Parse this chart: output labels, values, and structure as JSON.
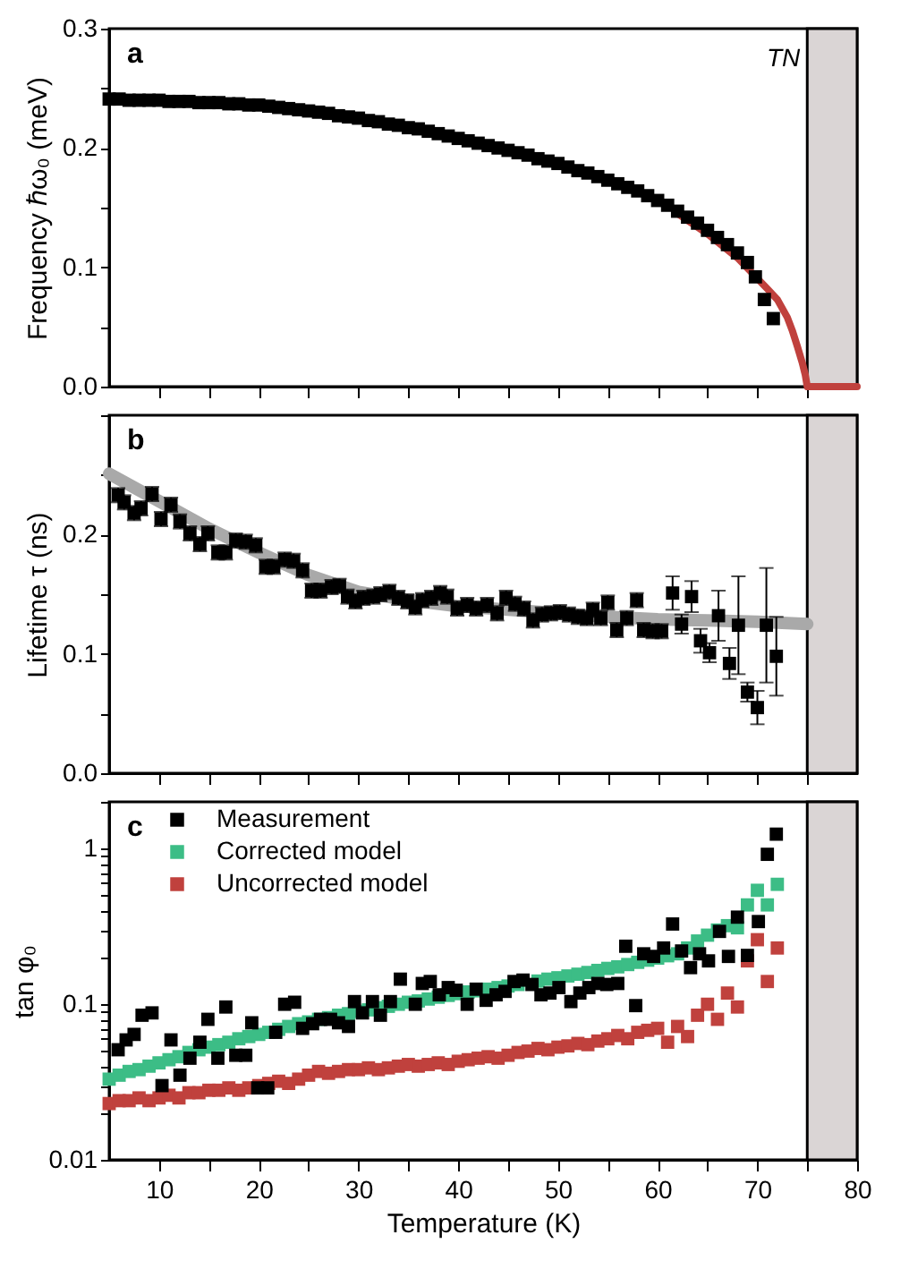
{
  "chart_data": [
    {
      "type": "scatter",
      "ylabel": "Frequency ℏω₀ (meV)",
      "tick_labels": "y",
      "annotations": [
        "a"
      ],
      "xlim": [
        5,
        80
      ],
      "xticks": [
        {
          "value": 10,
          "label": null
        },
        {
          "value": 15,
          "label": null
        },
        {
          "value": 20,
          "label": null
        },
        {
          "value": 25,
          "label": null
        },
        {
          "value": 30,
          "label": null
        },
        {
          "value": 35,
          "label": null
        },
        {
          "value": 40,
          "label": null
        },
        {
          "value": 45,
          "label": null
        },
        {
          "value": 50,
          "label": null
        },
        {
          "value": 55,
          "label": null
        },
        {
          "value": 60,
          "label": null
        },
        {
          "value": 65,
          "label": null
        },
        {
          "value": 70,
          "label": null
        },
        {
          "value": 75,
          "label": null
        }
      ],
      "ylim": [
        0,
        0.3
      ],
      "yticks": [
        {
          "value": 0,
          "label": "0.0"
        },
        {
          "value": 0.05,
          "label": null
        },
        0.1,
        {
          "value": 0.15,
          "label": null
        },
        0.2,
        {
          "value": 0.25,
          "label": null
        },
        0.3
      ],
      "bands": [
        {
          "axis": "x",
          "from": 75,
          "to": 80,
          "label": "TN",
          "color": "#dad5d5"
        }
      ],
      "series": [
        {
          "type": "line",
          "color": "#c0413d",
          "x": [
            62,
            65,
            68,
            71,
            72,
            73,
            73.5,
            74,
            74.5,
            74.8,
            75,
            80
          ],
          "values": [
            0.145,
            0.128,
            0.108,
            0.082,
            0.073,
            0.058,
            0.047,
            0.034,
            0.02,
            0.01,
            0,
            0
          ]
        },
        {
          "marker": "square",
          "color": "#000000",
          "x": [
            5,
            6,
            7,
            8,
            9,
            10,
            11,
            12,
            13,
            14,
            15,
            16,
            17,
            18,
            19,
            20,
            21,
            22,
            23,
            24,
            25,
            26,
            27,
            28,
            29,
            30,
            31,
            32,
            33,
            34,
            35,
            36,
            37,
            38,
            39,
            40,
            41,
            42,
            43,
            44,
            45,
            46,
            47,
            48,
            49,
            50,
            51,
            52,
            53,
            54,
            55,
            56,
            57,
            58,
            59,
            60,
            61,
            62,
            63,
            64,
            65,
            66,
            67,
            68,
            69,
            69.8,
            70.7,
            71.6
          ],
          "values": [
            0.241,
            0.241,
            0.24,
            0.24,
            0.24,
            0.24,
            0.239,
            0.239,
            0.239,
            0.238,
            0.238,
            0.238,
            0.237,
            0.237,
            0.236,
            0.236,
            0.235,
            0.234,
            0.233,
            0.232,
            0.231,
            0.23,
            0.229,
            0.227,
            0.226,
            0.225,
            0.223,
            0.222,
            0.22,
            0.219,
            0.217,
            0.216,
            0.214,
            0.212,
            0.21,
            0.208,
            0.206,
            0.204,
            0.202,
            0.2,
            0.198,
            0.196,
            0.194,
            0.191,
            0.189,
            0.187,
            0.184,
            0.181,
            0.179,
            0.176,
            0.173,
            0.17,
            0.167,
            0.164,
            0.16,
            0.156,
            0.152,
            0.147,
            0.142,
            0.137,
            0.131,
            0.125,
            0.119,
            0.112,
            0.104,
            0.092,
            0.073,
            0.057
          ]
        }
      ]
    },
    {
      "type": "scatter",
      "ylabel": "Lifetime τ (ns)",
      "tick_labels": "y",
      "annotations": [
        "b"
      ],
      "xlim": [
        5,
        80
      ],
      "xticks": [
        {
          "value": 10,
          "label": null
        },
        {
          "value": 15,
          "label": null
        },
        {
          "value": 20,
          "label": null
        },
        {
          "value": 25,
          "label": null
        },
        {
          "value": 30,
          "label": null
        },
        {
          "value": 35,
          "label": null
        },
        {
          "value": 40,
          "label": null
        },
        {
          "value": 45,
          "label": null
        },
        {
          "value": 50,
          "label": null
        },
        {
          "value": 55,
          "label": null
        },
        {
          "value": 60,
          "label": null
        },
        {
          "value": 65,
          "label": null
        },
        {
          "value": 70,
          "label": null
        },
        {
          "value": 75,
          "label": null
        }
      ],
      "ylim": [
        0,
        0.3
      ],
      "yticks": [
        {
          "value": 0,
          "label": "0.0"
        },
        {
          "value": 0.05,
          "label": null
        },
        0.1,
        {
          "value": 0.15,
          "label": null
        },
        0.2,
        {
          "value": 0.25,
          "label": null
        },
        {
          "value": 0.3,
          "label": null
        }
      ],
      "bands": [
        {
          "axis": "x",
          "from": 75,
          "to": 80,
          "color": "#dad5d5"
        }
      ],
      "series": [
        {
          "type": "line",
          "color": "#a9a9a9",
          "x": [
            5,
            10,
            15,
            20,
            25,
            30,
            35,
            40,
            45,
            50,
            55,
            60,
            65,
            70,
            75
          ],
          "values": [
            0.251,
            0.228,
            0.205,
            0.185,
            0.166,
            0.152,
            0.145,
            0.14,
            0.137,
            0.134,
            0.131,
            0.129,
            0.128,
            0.127,
            0.125
          ]
        },
        {
          "marker": "square",
          "color": "#000000",
          "x": [
            5.9,
            6.5,
            7.5,
            8.2,
            9.3,
            10.2,
            11.2,
            12.1,
            13.1,
            14.1,
            14.9,
            15.9,
            16.7,
            17.7,
            18.7,
            19.7,
            20.7,
            21.5,
            22.6,
            23.5,
            24.4,
            25.3,
            26.2,
            27.3,
            28.1,
            28.9,
            29.7,
            30.5,
            31.5,
            32.2,
            33.1,
            34.0,
            34.9,
            35.7,
            36.4,
            37.3,
            38.2,
            38.9,
            39.9,
            40.9,
            41.8,
            42.9,
            43.9,
            44.8,
            45.7,
            46.6,
            47.5,
            48.4,
            49.3,
            50.2,
            51.1,
            52.0,
            52.9,
            53.5,
            54.3,
            55.0,
            55.9,
            56.9,
            57.9,
            58.6,
            59.5,
            60.4,
            61.5,
            62.4,
            63.4,
            64.3,
            65.2,
            66.1,
            67.2,
            68.1,
            69.0,
            70.0,
            70.9,
            71.9
          ],
          "values": [
            0.233,
            0.227,
            0.218,
            0.222,
            0.234,
            0.213,
            0.225,
            0.211,
            0.201,
            0.192,
            0.201,
            0.185,
            0.185,
            0.195,
            0.194,
            0.191,
            0.173,
            0.173,
            0.179,
            0.178,
            0.17,
            0.153,
            0.153,
            0.156,
            0.157,
            0.148,
            0.144,
            0.147,
            0.148,
            0.15,
            0.152,
            0.147,
            0.144,
            0.139,
            0.145,
            0.147,
            0.151,
            0.148,
            0.138,
            0.141,
            0.138,
            0.141,
            0.134,
            0.147,
            0.142,
            0.138,
            0.128,
            0.133,
            0.134,
            0.135,
            0.133,
            0.131,
            0.13,
            0.137,
            0.13,
            0.143,
            0.12,
            0.13,
            0.145,
            0.12,
            0.119,
            0.119,
            0.151,
            0.125,
            0.148,
            0.111,
            0.101,
            0.132,
            0.092,
            0.124,
            0.068,
            0.055,
            0.124,
            0.098
          ],
          "errors": [
            0.006,
            0.006,
            0.006,
            0.006,
            0.006,
            0.006,
            0.006,
            0.006,
            0.006,
            0.006,
            0.006,
            0.006,
            0.006,
            0.006,
            0.006,
            0.006,
            0.006,
            0.006,
            0.006,
            0.006,
            0.006,
            0.006,
            0.006,
            0.006,
            0.006,
            0.006,
            0.006,
            0.006,
            0.006,
            0.006,
            0.006,
            0.006,
            0.006,
            0.006,
            0.006,
            0.006,
            0.006,
            0.006,
            0.006,
            0.006,
            0.006,
            0.006,
            0.006,
            0.006,
            0.006,
            0.006,
            0.006,
            0.006,
            0.006,
            0.006,
            0.006,
            0.006,
            0.006,
            0.006,
            0.006,
            0.006,
            0.006,
            0.006,
            0.006,
            0.006,
            0.006,
            0.006,
            0.014,
            0.008,
            0.013,
            0.01,
            0.008,
            0.021,
            0.013,
            0.041,
            0.008,
            0.014,
            0.048,
            0.033
          ]
        }
      ]
    },
    {
      "type": "scatter",
      "xlabel": "Temperature (K)",
      "ylabel": "tan φ₀",
      "marker": "square",
      "log": "y",
      "legend": "top left",
      "annotations": [
        "c"
      ],
      "xlim": [
        5,
        80
      ],
      "xticks": [
        10,
        {
          "value": 15,
          "label": null
        },
        20,
        {
          "value": 25,
          "label": null
        },
        30,
        {
          "value": 35,
          "label": null
        },
        40,
        {
          "value": 45,
          "label": null
        },
        50,
        {
          "value": 55,
          "label": null
        },
        60,
        {
          "value": 65,
          "label": null
        },
        70,
        {
          "value": 75,
          "label": null
        },
        80
      ],
      "ylim": [
        0.01,
        2
      ],
      "yticks": [
        0.01,
        {
          "value": 0.02,
          "label": null
        },
        {
          "value": 0.03,
          "label": null
        },
        {
          "value": 0.04,
          "label": null
        },
        {
          "value": 0.05,
          "label": null
        },
        {
          "value": 0.06,
          "label": null
        },
        {
          "value": 0.07,
          "label": null
        },
        {
          "value": 0.08,
          "label": null
        },
        {
          "value": 0.09,
          "label": null
        },
        0.1,
        {
          "value": 0.2,
          "label": null
        },
        {
          "value": 0.3,
          "label": null
        },
        {
          "value": 0.4,
          "label": null
        },
        {
          "value": 0.5,
          "label": null
        },
        {
          "value": 0.6,
          "label": null
        },
        {
          "value": 0.7,
          "label": null
        },
        {
          "value": 0.8,
          "label": null
        },
        {
          "value": 0.9,
          "label": null
        },
        1,
        {
          "value": 2,
          "label": null
        }
      ],
      "bands": [
        {
          "axis": "x",
          "from": 75,
          "to": 80,
          "color": "#dad5d5"
        }
      ],
      "series": [
        {
          "name": "Measurement",
          "color": "#000000",
          "x": [
            5.9,
            6.7,
            7.5,
            8.3,
            9.3,
            10.3,
            11.2,
            12.1,
            13.1,
            14.1,
            14.9,
            15.9,
            16.7,
            17.7,
            18.7,
            19.3,
            19.9,
            20.9,
            21.7,
            22.6,
            23.6,
            24.4,
            25.4,
            26.2,
            27.2,
            28.0,
            29.0,
            29.6,
            30.4,
            31.4,
            32.2,
            33.2,
            34.2,
            35.7,
            36.4,
            37.2,
            38.1,
            39.0,
            39.8,
            40.9,
            41.8,
            42.8,
            43.8,
            44.7,
            45.6,
            46.5,
            47.4,
            48.3,
            49.2,
            50.1,
            51.3,
            52.2,
            53.1,
            54.0,
            54.9,
            56.0,
            56.8,
            57.8,
            58.6,
            59.6,
            60.6,
            61.5,
            62.4,
            63.3,
            64.2,
            65.1,
            66.2,
            67.1,
            68.0,
            69.0,
            70.1,
            71.0,
            71.9
          ],
          "values": [
            0.051,
            0.059,
            0.064,
            0.085,
            0.088,
            0.03,
            0.059,
            0.035,
            0.045,
            0.057,
            0.08,
            0.045,
            0.096,
            0.047,
            0.047,
            0.076,
            0.029,
            0.029,
            0.066,
            0.1,
            0.103,
            0.07,
            0.075,
            0.08,
            0.08,
            0.076,
            0.072,
            0.104,
            0.088,
            0.104,
            0.085,
            0.104,
            0.145,
            0.1,
            0.136,
            0.14,
            0.115,
            0.128,
            0.123,
            0.1,
            0.125,
            0.106,
            0.115,
            0.121,
            0.14,
            0.143,
            0.134,
            0.115,
            0.118,
            0.128,
            0.104,
            0.118,
            0.128,
            0.136,
            0.134,
            0.136,
            0.236,
            0.098,
            0.211,
            0.203,
            0.23,
            0.328,
            0.22,
            0.172,
            0.211,
            0.19,
            0.294,
            0.203,
            0.363,
            0.206,
            0.34,
            0.92,
            1.24
          ]
        },
        {
          "name": "Corrected model",
          "color": "#3cbd86",
          "x": [
            5,
            6,
            7,
            8,
            9,
            10,
            11,
            12,
            13,
            14,
            15,
            16,
            17,
            18,
            19,
            20,
            21,
            22,
            23,
            24,
            25,
            26,
            27,
            28,
            29,
            30,
            31,
            32,
            33,
            34,
            35,
            36,
            37,
            38,
            39,
            40,
            41,
            42,
            43,
            44,
            45,
            46,
            47,
            48,
            49,
            50,
            51,
            52,
            53,
            54,
            55,
            56,
            57,
            58,
            59,
            60,
            61,
            62,
            63,
            64,
            65,
            66,
            67,
            68,
            69,
            70,
            71,
            72
          ],
          "values": [
            0.033,
            0.035,
            0.037,
            0.038,
            0.04,
            0.042,
            0.044,
            0.046,
            0.049,
            0.051,
            0.053,
            0.055,
            0.057,
            0.06,
            0.062,
            0.064,
            0.066,
            0.069,
            0.072,
            0.075,
            0.077,
            0.08,
            0.082,
            0.085,
            0.087,
            0.09,
            0.092,
            0.095,
            0.097,
            0.1,
            0.103,
            0.105,
            0.108,
            0.111,
            0.114,
            0.117,
            0.12,
            0.122,
            0.125,
            0.128,
            0.131,
            0.134,
            null,
            0.141,
            0.145,
            0.148,
            0.152,
            0.156,
            0.16,
            0.165,
            0.17,
            0.174,
            0.18,
            0.186,
            0.192,
            0.198,
            0.205,
            0.211,
            0.23,
            0.255,
            0.278,
            0.3,
            0.32,
            0.31,
            0.435,
            0.54,
            0.435,
            0.59
          ]
        },
        {
          "name": "Uncorrected model",
          "color": "#c0413d",
          "x": [
            5,
            6,
            7,
            8,
            9,
            10,
            11,
            12,
            13,
            14,
            15,
            16,
            17,
            18,
            19,
            20,
            21,
            22,
            23,
            24,
            25,
            26,
            27,
            28,
            29,
            30,
            31,
            32,
            33,
            34,
            35,
            36,
            37,
            38,
            39,
            40,
            41,
            42,
            43,
            44,
            45,
            46,
            47,
            48,
            49,
            50,
            51,
            52,
            53,
            54,
            55,
            56,
            57,
            58,
            59,
            60,
            61,
            62,
            63,
            64,
            65,
            66,
            67,
            68,
            69,
            70,
            71,
            72
          ],
          "values": [
            0.023,
            0.024,
            0.024,
            0.025,
            0.024,
            0.025,
            0.026,
            0.025,
            0.027,
            0.027,
            0.028,
            0.028,
            0.029,
            0.028,
            0.029,
            0.03,
            0.031,
            0.032,
            0.031,
            0.033,
            0.035,
            0.037,
            0.036,
            0.037,
            0.038,
            0.038,
            0.039,
            0.038,
            0.039,
            0.04,
            0.041,
            0.04,
            0.041,
            0.042,
            0.041,
            0.043,
            0.044,
            0.045,
            0.046,
            0.045,
            0.047,
            0.049,
            0.05,
            0.052,
            0.051,
            0.053,
            0.054,
            0.056,
            0.055,
            0.058,
            0.06,
            0.063,
            0.06,
            0.066,
            0.068,
            0.07,
            0.057,
            0.072,
            0.062,
            0.085,
            0.1,
            0.08,
            0.118,
            0.096,
            0.19,
            0.26,
            0.14,
            0.23
          ]
        }
      ]
    }
  ]
}
